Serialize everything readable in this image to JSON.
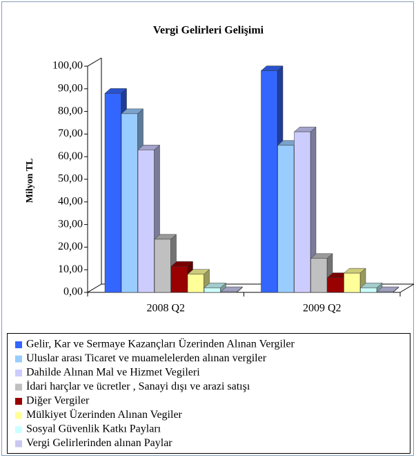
{
  "chart_data": {
    "type": "bar3d",
    "title": "Vergi Gelirleri Gelişimi",
    "y_label": "Milyon TL",
    "categories": [
      "2008 Q2",
      "2009 Q2"
    ],
    "series": [
      {
        "name": "Gelir, Kar ve Sermaye Kazançları Üzerinden Alınan Vergiler",
        "color": "#3366ff",
        "values": [
          88,
          98
        ]
      },
      {
        "name": "Uluslar arası Ticaret ve muamelelerden alınan vergiler",
        "color": "#99ccff",
        "values": [
          79,
          65
        ]
      },
      {
        "name": "Dahilde Alınan Mal ve Hizmet Vegileri",
        "color": "#ccccff",
        "values": [
          63,
          71
        ]
      },
      {
        "name": "İdari harçlar ve ücretler , Sanayi dışı ve arazi satışı",
        "color": "#c0c0c0",
        "values": [
          23.5,
          15
        ]
      },
      {
        "name": "Diğer Vergiler",
        "color": "#990000",
        "values": [
          11.5,
          6.5
        ]
      },
      {
        "name": "Mülkiyet Üzerinden Alınan Vegiler",
        "color": "#ffff99",
        "values": [
          8,
          8.5
        ]
      },
      {
        "name": "Sosyal Güvenlik Katkı Payları",
        "color": "#ccffff",
        "values": [
          2,
          2
        ]
      },
      {
        "name": "Vergi Gelirlerinden alınan Paylar",
        "color": "#c8c8f0",
        "values": [
          0.3,
          0.3
        ]
      }
    ],
    "ylim": [
      0,
      100
    ],
    "yticks": [
      {
        "value": 0,
        "label": "0,00"
      },
      {
        "value": 10,
        "label": "10,00"
      },
      {
        "value": 20,
        "label": "20,00"
      },
      {
        "value": 30,
        "label": "30,00"
      },
      {
        "value": 40,
        "label": "40,00"
      },
      {
        "value": 50,
        "label": "50,00"
      },
      {
        "value": 60,
        "label": "60,00"
      },
      {
        "value": 70,
        "label": "70,00"
      },
      {
        "value": 80,
        "label": "80,00"
      },
      {
        "value": 90,
        "label": "90,00"
      },
      {
        "value": 100,
        "label": "100,00"
      }
    ],
    "grid": false,
    "legend": "bottom"
  }
}
